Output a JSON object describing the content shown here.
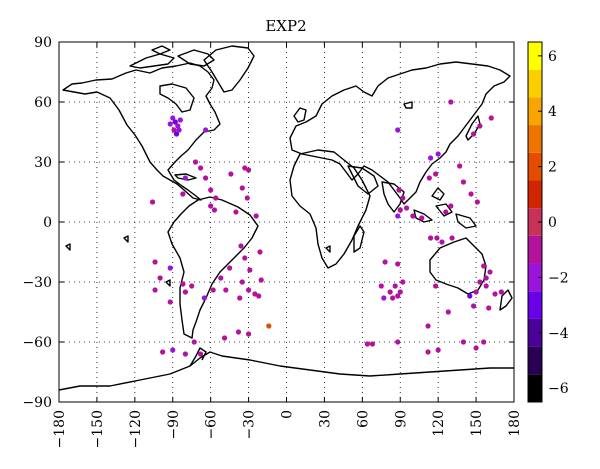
{
  "chart_data": {
    "type": "scatter",
    "title": "EXP2",
    "xlabel": "",
    "ylabel": "",
    "xlim": [
      -180,
      180
    ],
    "ylim": [
      -90,
      90
    ],
    "xticks": [
      -180,
      -150,
      -120,
      -90,
      -60,
      -30,
      0,
      30,
      60,
      90,
      120,
      150,
      180
    ],
    "yticks": [
      -90,
      -60,
      -30,
      0,
      30,
      60,
      90
    ],
    "grid": true,
    "grid_style": "dotted",
    "background": "world-coastline-map",
    "colorbar": {
      "min": -6.5,
      "max": 6.5,
      "ticks": [
        -6,
        -4,
        -2,
        0,
        2,
        4,
        6
      ],
      "levels": [
        {
          "from": -6.5,
          "to": -5.5,
          "color": "#000000"
        },
        {
          "from": -5.5,
          "to": -4.5,
          "color": "#2a0057"
        },
        {
          "from": -4.5,
          "to": -3.5,
          "color": "#4b0099"
        },
        {
          "from": -3.5,
          "to": -2.5,
          "color": "#6a00e6"
        },
        {
          "from": -2.5,
          "to": -1.5,
          "color": "#9a14dc"
        },
        {
          "from": -1.5,
          "to": -0.5,
          "color": "#b4129d"
        },
        {
          "from": -0.5,
          "to": 0.5,
          "color": "#c8325a"
        },
        {
          "from": 0.5,
          "to": 1.5,
          "color": "#d02500"
        },
        {
          "from": 1.5,
          "to": 2.5,
          "color": "#e44d00"
        },
        {
          "from": 2.5,
          "to": 3.5,
          "color": "#ef7300"
        },
        {
          "from": 3.5,
          "to": 4.5,
          "color": "#f7a500"
        },
        {
          "from": 4.5,
          "to": 5.5,
          "color": "#fcd000"
        },
        {
          "from": 5.5,
          "to": 6.5,
          "color": "#ffff00"
        }
      ]
    },
    "points": [
      {
        "lon": -90,
        "lat": 52,
        "value": -2.3
      },
      {
        "lon": -88,
        "lat": 50,
        "value": -2.6
      },
      {
        "lon": -86,
        "lat": 48,
        "value": -1.9
      },
      {
        "lon": -89,
        "lat": 46,
        "value": -1.2
      },
      {
        "lon": -87,
        "lat": 44,
        "value": -2.8
      },
      {
        "lon": -84,
        "lat": 51,
        "value": -2.1
      },
      {
        "lon": -92,
        "lat": 49,
        "value": -1.7
      },
      {
        "lon": -85,
        "lat": 46,
        "value": -2.4
      },
      {
        "lon": -64,
        "lat": 46,
        "value": -2.0
      },
      {
        "lon": -72,
        "lat": 30,
        "value": -1.1
      },
      {
        "lon": -68,
        "lat": 27,
        "value": -1.3
      },
      {
        "lon": -64,
        "lat": 22,
        "value": -1.0
      },
      {
        "lon": -60,
        "lat": 16,
        "value": -1.4
      },
      {
        "lon": -56,
        "lat": 12,
        "value": -1.2
      },
      {
        "lon": -60,
        "lat": 8,
        "value": -1.0
      },
      {
        "lon": -57,
        "lat": 6,
        "value": -1.3
      },
      {
        "lon": -80,
        "lat": 22,
        "value": -2.5
      },
      {
        "lon": -82,
        "lat": 14,
        "value": -1.1
      },
      {
        "lon": -106,
        "lat": 10,
        "value": -1.2
      },
      {
        "lon": -44,
        "lat": 24,
        "value": -1.4
      },
      {
        "lon": -33,
        "lat": 27,
        "value": -1.0
      },
      {
        "lon": -30,
        "lat": 26,
        "value": -1.2
      },
      {
        "lon": -35,
        "lat": 17,
        "value": -1.1
      },
      {
        "lon": -31,
        "lat": 12,
        "value": -1.0
      },
      {
        "lon": -40,
        "lat": 5,
        "value": -1.3
      },
      {
        "lon": -24,
        "lat": 3,
        "value": -1.0
      },
      {
        "lon": -104,
        "lat": -20,
        "value": -1.3
      },
      {
        "lon": -92,
        "lat": -23,
        "value": -2.2
      },
      {
        "lon": -100,
        "lat": -28,
        "value": -1.0
      },
      {
        "lon": -104,
        "lat": -34,
        "value": -1.1
      },
      {
        "lon": -92,
        "lat": -40,
        "value": -1.2
      },
      {
        "lon": -82,
        "lat": -31,
        "value": -1.0
      },
      {
        "lon": -80,
        "lat": -35,
        "value": -1.3
      },
      {
        "lon": -75,
        "lat": -32,
        "value": -1.4
      },
      {
        "lon": -58,
        "lat": -34,
        "value": -1.1
      },
      {
        "lon": -65,
        "lat": -38,
        "value": -2.4
      },
      {
        "lon": -52,
        "lat": -28,
        "value": -1.2
      },
      {
        "lon": -48,
        "lat": -34,
        "value": -1.0
      },
      {
        "lon": -45,
        "lat": -23,
        "value": -1.3
      },
      {
        "lon": -36,
        "lat": -12,
        "value": -1.1
      },
      {
        "lon": -33,
        "lat": -18,
        "value": -1.0
      },
      {
        "lon": -29,
        "lat": -24,
        "value": -1.2
      },
      {
        "lon": -35,
        "lat": -30,
        "value": -1.1
      },
      {
        "lon": -30,
        "lat": -34,
        "value": -1.4
      },
      {
        "lon": -25,
        "lat": -36,
        "value": -1.0
      },
      {
        "lon": -20,
        "lat": -29,
        "value": -1.1
      },
      {
        "lon": -37,
        "lat": -38,
        "value": -1.3
      },
      {
        "lon": -21,
        "lat": -15,
        "value": -1.2
      },
      {
        "lon": -22,
        "lat": -37,
        "value": -1.0
      },
      {
        "lon": -14,
        "lat": -52,
        "value": 1.5
      },
      {
        "lon": -38,
        "lat": -55,
        "value": -1.1
      },
      {
        "lon": -49,
        "lat": -58,
        "value": -1.2
      },
      {
        "lon": -68,
        "lat": -66,
        "value": -1.3
      },
      {
        "lon": -80,
        "lat": -66,
        "value": -1.1
      },
      {
        "lon": -73,
        "lat": -60,
        "value": -1.4
      },
      {
        "lon": -90,
        "lat": -64,
        "value": -2.3
      },
      {
        "lon": -98,
        "lat": -65,
        "value": -1.0
      },
      {
        "lon": -30,
        "lat": -56,
        "value": -1.2
      },
      {
        "lon": 88,
        "lat": 46,
        "value": -2.4
      },
      {
        "lon": 130,
        "lat": 60,
        "value": -1.2
      },
      {
        "lon": 153,
        "lat": 48,
        "value": -1.3
      },
      {
        "lon": 162,
        "lat": 52,
        "value": -1.1
      },
      {
        "lon": 148,
        "lat": 44,
        "value": -1.0
      },
      {
        "lon": 120,
        "lat": 34,
        "value": -2.2
      },
      {
        "lon": 114,
        "lat": 32,
        "value": -1.9
      },
      {
        "lon": 118,
        "lat": 24,
        "value": -1.0
      },
      {
        "lon": 113,
        "lat": 22,
        "value": -1.4
      },
      {
        "lon": 137,
        "lat": 28,
        "value": -1.2
      },
      {
        "lon": 140,
        "lat": 20,
        "value": -1.1
      },
      {
        "lon": 146,
        "lat": 14,
        "value": -1.0
      },
      {
        "lon": 151,
        "lat": 10,
        "value": -1.3
      },
      {
        "lon": 130,
        "lat": 8,
        "value": -1.1
      },
      {
        "lon": 126,
        "lat": 5,
        "value": -1.2
      },
      {
        "lon": 89,
        "lat": 16,
        "value": -1.1
      },
      {
        "lon": 92,
        "lat": 12,
        "value": -1.0
      },
      {
        "lon": 95,
        "lat": 7,
        "value": -1.4
      },
      {
        "lon": 90,
        "lat": 6,
        "value": -1.2
      },
      {
        "lon": 88,
        "lat": 3,
        "value": -2.1
      },
      {
        "lon": 100,
        "lat": 3,
        "value": -1.0
      },
      {
        "lon": 107,
        "lat": 2,
        "value": -1.1
      },
      {
        "lon": 114,
        "lat": -8,
        "value": -1.3
      },
      {
        "lon": 119,
        "lat": -8,
        "value": -1.0
      },
      {
        "lon": 123,
        "lat": -10,
        "value": -1.2
      },
      {
        "lon": 131,
        "lat": -8,
        "value": -1.1
      },
      {
        "lon": 78,
        "lat": -20,
        "value": -1.0
      },
      {
        "lon": 88,
        "lat": -21,
        "value": -1.3
      },
      {
        "lon": 75,
        "lat": -32,
        "value": -1.1
      },
      {
        "lon": 82,
        "lat": -35,
        "value": -1.2
      },
      {
        "lon": 86,
        "lat": -32,
        "value": -1.0
      },
      {
        "lon": 90,
        "lat": -35,
        "value": -1.3
      },
      {
        "lon": 77,
        "lat": -38,
        "value": -2.3
      },
      {
        "lon": 84,
        "lat": -38,
        "value": -1.1
      },
      {
        "lon": 88,
        "lat": -37,
        "value": -1.0
      },
      {
        "lon": 92,
        "lat": -30,
        "value": -1.2
      },
      {
        "lon": 118,
        "lat": -32,
        "value": -1.1
      },
      {
        "lon": 145,
        "lat": -37,
        "value": -2.6
      },
      {
        "lon": 150,
        "lat": -35,
        "value": -1.0
      },
      {
        "lon": 153,
        "lat": -30,
        "value": -1.1
      },
      {
        "lon": 156,
        "lat": -22,
        "value": -1.3
      },
      {
        "lon": 161,
        "lat": -25,
        "value": -1.0
      },
      {
        "lon": 158,
        "lat": -28,
        "value": -1.2
      },
      {
        "lon": 158,
        "lat": -32,
        "value": -1.1
      },
      {
        "lon": 165,
        "lat": -36,
        "value": -1.0
      },
      {
        "lon": 148,
        "lat": -42,
        "value": -1.2
      },
      {
        "lon": 160,
        "lat": -43,
        "value": -1.1
      },
      {
        "lon": 170,
        "lat": -35,
        "value": -1.4
      },
      {
        "lon": 128,
        "lat": -45,
        "value": -1.0
      },
      {
        "lon": 112,
        "lat": -52,
        "value": -1.3
      },
      {
        "lon": 120,
        "lat": -64,
        "value": -1.1
      },
      {
        "lon": 112,
        "lat": -65,
        "value": -1.0
      },
      {
        "lon": 140,
        "lat": -60,
        "value": -1.2
      },
      {
        "lon": 156,
        "lat": -60,
        "value": -1.1
      },
      {
        "lon": 150,
        "lat": -63,
        "value": -1.0
      },
      {
        "lon": 88,
        "lat": -60,
        "value": -1.2
      },
      {
        "lon": 64,
        "lat": -61,
        "value": -1.1
      },
      {
        "lon": 68,
        "lat": -61,
        "value": -1.0
      }
    ]
  }
}
